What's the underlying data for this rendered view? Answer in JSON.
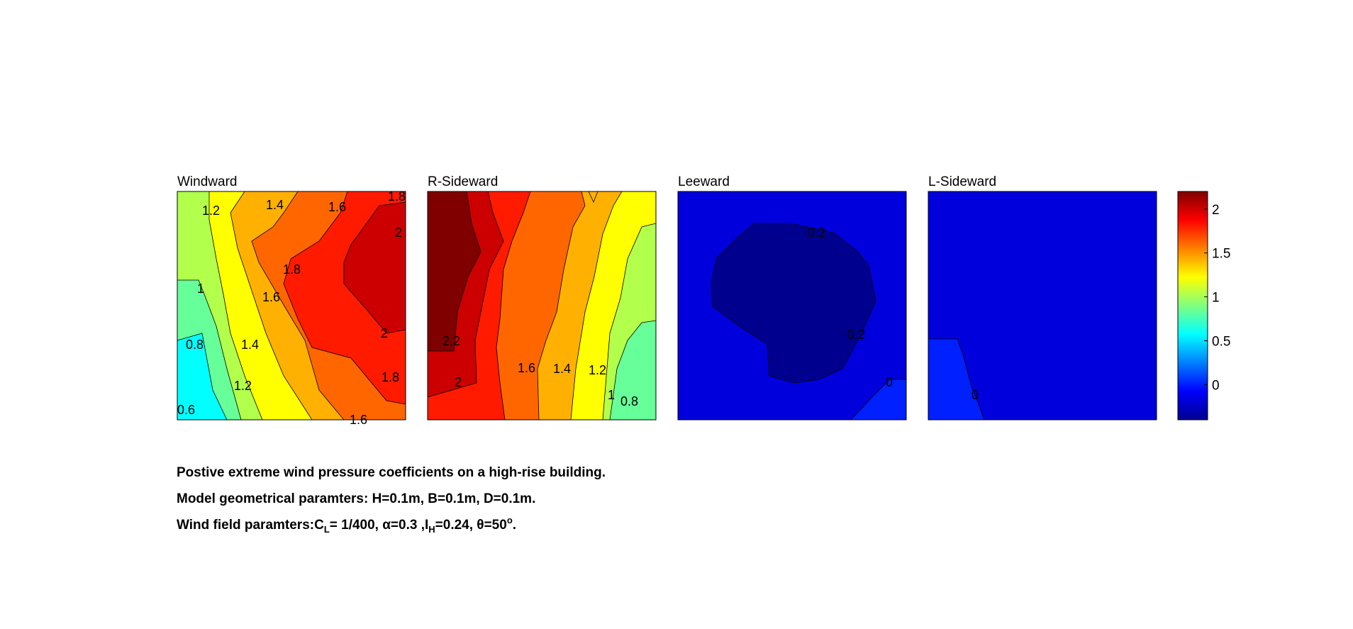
{
  "chart_data": {
    "type": "heatmap",
    "colormap": "jet",
    "clim": [
      -0.4,
      2.2
    ],
    "colorbar": {
      "ticks": [
        0,
        0.5,
        1,
        1.5,
        2
      ],
      "tick_labels": [
        "0",
        "0.5",
        "1",
        "1.5",
        "2"
      ]
    },
    "panels": [
      {
        "title": "Windward",
        "fields": [
          {
            "level": 0.4,
            "color": "#00ffff"
          },
          {
            "level": 0.8,
            "color": "#66ff99"
          },
          {
            "level": 1.2,
            "color": "#b2ff4c"
          },
          {
            "level": 1.3,
            "color": "#ffff00"
          },
          {
            "level": 1.4,
            "color": "#ffb000"
          },
          {
            "level": 1.6,
            "color": "#ff6600"
          },
          {
            "level": 1.8,
            "color": "#ff1a00"
          },
          {
            "level": 2.0,
            "color": "#cc0000"
          }
        ],
        "contour_labels": [
          "1.2",
          "1.4",
          "1.6",
          "1.8",
          "2",
          "1",
          "1.8",
          "1.6",
          "0.8",
          "1.4",
          "2",
          "1.2",
          "1.8",
          "0.6",
          "1.6"
        ]
      },
      {
        "title": "R-Sideward",
        "fields": [
          {
            "level": 0.8,
            "color": "#66ff99"
          },
          {
            "level": 1.0,
            "color": "#b2ff4c"
          },
          {
            "level": 1.2,
            "color": "#ffff00"
          },
          {
            "level": 1.4,
            "color": "#ffb000"
          },
          {
            "level": 1.6,
            "color": "#ff6600"
          },
          {
            "level": 2.0,
            "color": "#ff1a00"
          },
          {
            "level": 2.2,
            "color": "#cc0000"
          },
          {
            "level": 2.4,
            "color": "#800000"
          }
        ],
        "contour_labels": [
          "2.2",
          "2",
          "1.6",
          "1.4",
          "1.2",
          "1",
          "0.8"
        ]
      },
      {
        "title": "Leeward",
        "fields": [
          {
            "level": -0.1,
            "color": "#0000dd"
          },
          {
            "level": -0.2,
            "color": "#00008f"
          },
          {
            "level": 0.0,
            "color": "#0020ff"
          }
        ],
        "contour_labels": [
          "-0.2",
          "-0.2",
          "0"
        ]
      },
      {
        "title": "L-Sideward",
        "fields": [
          {
            "level": -0.1,
            "color": "#0000dd"
          },
          {
            "level": 0.0,
            "color": "#0020ff"
          }
        ],
        "contour_labels": [
          "0"
        ]
      }
    ]
  },
  "caption": {
    "line1": "Postive extreme  wind pressure coefficients on a high-rise building.",
    "line2": "Model geometrical paramters: H=0.1m, B=0.1m, D=0.1m.",
    "line3_prefix": "Wind field paramters:C",
    "line3_sub_L": "L",
    "line3_mid1": "= 1/400, α=0.3 ,I",
    "line3_sub_H": "H",
    "line3_mid2": "=0.24, θ=50",
    "line3_sup": "o",
    "line3_end": "."
  }
}
